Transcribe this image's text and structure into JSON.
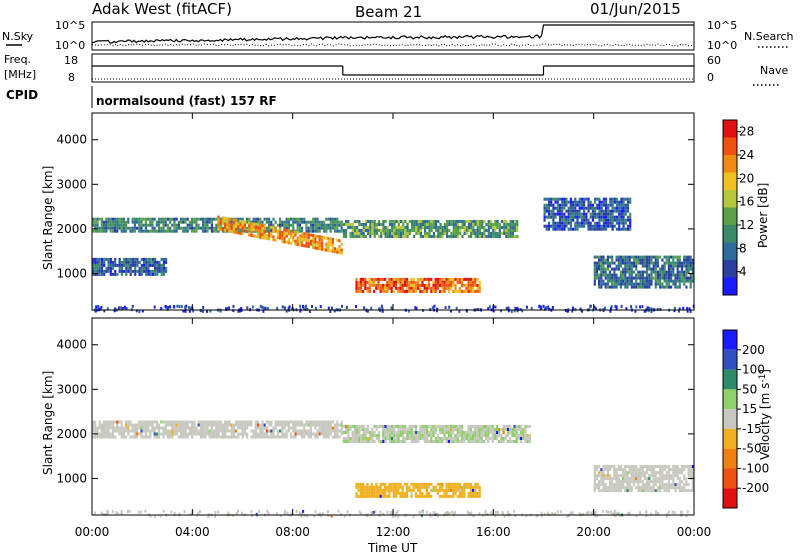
{
  "header": {
    "station": "Adak West (fitACF)",
    "beam": "Beam 21",
    "date": "01/Jun/2015"
  },
  "nsky_panel": {
    "left_label": "N.Sky",
    "right_label": "N.Search",
    "left_ticks": [
      "10^5",
      "10^0"
    ],
    "right_ticks": [
      "10^5",
      "10^0"
    ]
  },
  "freq_panel": {
    "left_label_1": "Freq.",
    "left_label_2": "[MHz]",
    "right_label": "Nave",
    "left_ticks": [
      "18",
      "8"
    ],
    "right_ticks": [
      "60",
      "0"
    ]
  },
  "cpid": {
    "label": "CPID",
    "text": "normalsound (fast) 157 RF"
  },
  "colors": {
    "power_scale": [
      "#1a1aff",
      "#2a3fa0",
      "#2e6b9a",
      "#3a8a6a",
      "#5aa04a",
      "#b6c83a",
      "#f0c020",
      "#f08a10",
      "#f05010",
      "#e01010"
    ],
    "velocity_scale": [
      "#1a1aff",
      "#3050c0",
      "#2e8b6a",
      "#8ed06a",
      "#c8c8c0",
      "#f0b020",
      "#f08010",
      "#f05010",
      "#e01010"
    ]
  },
  "chart_data": [
    {
      "type": "heatmap",
      "title": "Power",
      "ylabel": "Slant Range [km]",
      "ylim": [
        180,
        4600
      ],
      "xlim": [
        0,
        24
      ],
      "yticks": [
        "1000",
        "2000",
        "3000",
        "4000"
      ],
      "colorbar": {
        "label": "Power [dB]",
        "ticks": [
          "4",
          "8",
          "12",
          "16",
          "20",
          "24",
          "28"
        ],
        "range": [
          0,
          30
        ]
      },
      "features": [
        {
          "name": "far band",
          "t_start": 0,
          "t_end": 10,
          "range_km": [
            1950,
            2250
          ],
          "power_db": 10
        },
        {
          "name": "descending band",
          "t_start": 5,
          "t_end": 10,
          "range_km_start": 2150,
          "range_km_end": 1600,
          "power_db": 22
        },
        {
          "name": "mid band",
          "t_start": 10,
          "t_end": 17,
          "range_km": [
            1800,
            2200
          ],
          "power_db": 12
        },
        {
          "name": "near band",
          "t_start": 10.5,
          "t_end": 15.5,
          "range_km": [
            580,
            900
          ],
          "power_db": 24
        },
        {
          "name": "early near",
          "t_start": 0,
          "t_end": 3,
          "range_km": [
            950,
            1350
          ],
          "power_db": 7
        },
        {
          "name": "late near",
          "t_start": 20,
          "t_end": 24,
          "range_km": [
            700,
            1400
          ],
          "power_db": 8
        },
        {
          "name": "late far",
          "t_start": 18,
          "t_end": 21.5,
          "range_km": [
            2000,
            2700
          ],
          "power_db": 6
        }
      ]
    },
    {
      "type": "heatmap",
      "title": "Velocity",
      "ylabel": "Slant Range [km]",
      "ylim": [
        180,
        4600
      ],
      "xlim": [
        0,
        24
      ],
      "yticks": [
        "1000",
        "2000",
        "3000",
        "4000"
      ],
      "xticks": [
        "00:00",
        "04:00",
        "08:00",
        "12:00",
        "16:00",
        "20:00",
        "00:00"
      ],
      "xlabel": "Time UT",
      "colorbar": {
        "label": "Velocity [m s",
        "label_sup": "-1",
        "label_end": "]",
        "ticks": [
          "200",
          "100",
          "50",
          "15",
          "-15",
          "-50",
          "-100",
          "-200"
        ]
      },
      "features": [
        {
          "name": "far band",
          "t_start": 0,
          "t_end": 10,
          "range_km": [
            1950,
            2300
          ],
          "velocity": 0
        },
        {
          "name": "mid band",
          "t_start": 10,
          "t_end": 17.5,
          "range_km": [
            1800,
            2200
          ],
          "velocity": 10
        },
        {
          "name": "near band",
          "t_start": 10.5,
          "t_end": 15.5,
          "range_km": [
            580,
            900
          ],
          "velocity": -30
        },
        {
          "name": "late near",
          "t_start": 20,
          "t_end": 24,
          "range_km": [
            700,
            1300
          ],
          "velocity": 0
        }
      ]
    }
  ]
}
